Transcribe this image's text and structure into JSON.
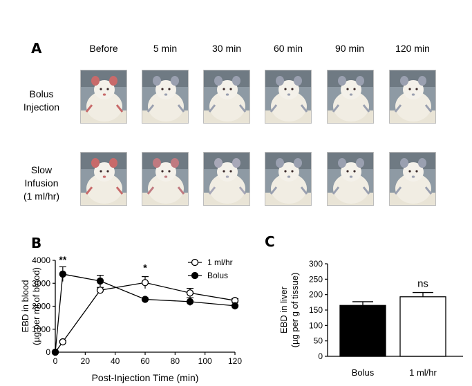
{
  "panel_a": {
    "letter": "A",
    "times": [
      "Before",
      "5 min",
      "30 min",
      "60 min",
      "90 min",
      "120 min"
    ],
    "rows": [
      {
        "label_lines": [
          "Bolus",
          "Injection"
        ],
        "eye_tint": [
          "#c86a6a",
          "#9aa0b0",
          "#9aa0b0",
          "#9aa0b0",
          "#9aa0b0",
          "#9aa0b0"
        ]
      },
      {
        "label_lines": [
          "Slow",
          "Infusion",
          "(1 ml/hr)"
        ],
        "eye_tint": [
          "#c86a6a",
          "#c07a80",
          "#a8a8b8",
          "#9aa0b0",
          "#9aa0b0",
          "#9aa0b0"
        ]
      }
    ]
  },
  "panel_b": {
    "letter": "B",
    "annotations": [
      {
        "text": "**",
        "x": 5,
        "y": 3880
      },
      {
        "text": "*",
        "x": 60,
        "y": 3530
      }
    ]
  },
  "panel_c": {
    "letter": "C",
    "annotations": [
      {
        "text": "ns",
        "category": "1 ml/hr"
      }
    ]
  },
  "chart_data": [
    {
      "type": "line",
      "xlabel": "Post-Injection Time (min)",
      "ylabel_lines": [
        "EBD in blood",
        "(µg per ml of blood)"
      ],
      "xlim": [
        0,
        120
      ],
      "ylim": [
        0,
        4000
      ],
      "xticks": [
        0,
        20,
        40,
        60,
        80,
        100,
        120
      ],
      "yticks": [
        0,
        1000,
        2000,
        3000,
        4000
      ],
      "legend_placement": "top-right",
      "series": [
        {
          "name": "1 ml/hr",
          "marker": "open-circle",
          "x": [
            0,
            5,
            30,
            60,
            90,
            120
          ],
          "y": [
            0,
            450,
            2700,
            3030,
            2580,
            2250
          ],
          "err": [
            0,
            60,
            120,
            260,
            200,
            80
          ]
        },
        {
          "name": "Bolus",
          "marker": "filled-circle",
          "x": [
            0,
            5,
            30,
            60,
            90,
            120
          ],
          "y": [
            0,
            3400,
            3100,
            2300,
            2200,
            2020
          ],
          "err": [
            0,
            320,
            250,
            60,
            170,
            160
          ]
        }
      ]
    },
    {
      "type": "bar",
      "categories": [
        "Bolus",
        "1 ml/hr"
      ],
      "values": [
        165,
        193
      ],
      "err": [
        12,
        14
      ],
      "bar_colors": [
        "#000000",
        "#ffffff"
      ],
      "ylabel_lines": [
        "EBD in liver",
        "(µg per g of tissue)"
      ],
      "ylim": [
        0,
        300
      ],
      "yticks": [
        0,
        50,
        100,
        150,
        200,
        250,
        300
      ]
    }
  ]
}
